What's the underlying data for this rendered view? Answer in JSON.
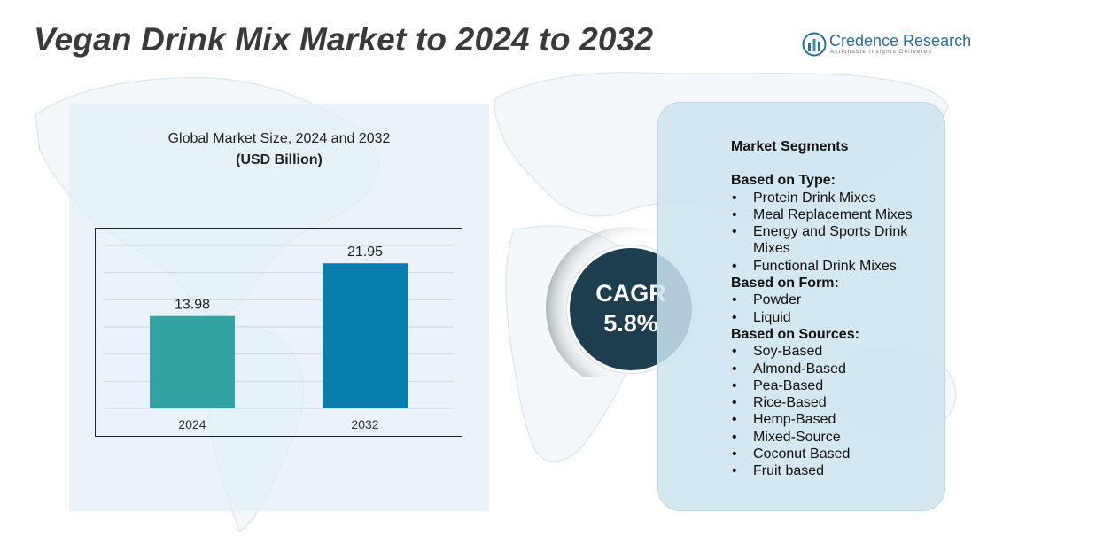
{
  "header": {
    "title": "Vegan Drink Mix Market to 2024 to 2032"
  },
  "logo": {
    "name": "Credence Research",
    "tagline": "Actionable Insights Delivered",
    "icon": "bar-chart-logo-icon"
  },
  "chart_data": {
    "type": "bar",
    "title": "Global Market Size, 2024 and 2032",
    "subtitle": "(USD Billion)",
    "categories": [
      "2024",
      "2032"
    ],
    "values": [
      13.98,
      21.95
    ],
    "data_labels": [
      "13.98",
      "21.95"
    ],
    "ylim": [
      0,
      26
    ],
    "grid": true,
    "bar_colors": [
      "#31a3a3",
      "#0a7ead"
    ]
  },
  "cagr": {
    "label": "CAGR",
    "value": "5.8%"
  },
  "segments": {
    "heading": "Market Segments",
    "groups": [
      {
        "title": "Based on Type:",
        "items": [
          "Protein Drink Mixes",
          "Meal Replacement Mixes",
          "Energy and Sports Drink Mixes",
          "Functional Drink Mixes"
        ]
      },
      {
        "title": "Based on Form:",
        "items": [
          "Powder",
          "Liquid"
        ]
      },
      {
        "title": "Based on Sources:",
        "items": [
          "Soy-Based",
          "Almond-Based",
          "Pea-Based",
          "Rice-Based",
          "Hemp-Based",
          "Mixed-Source",
          "Coconut Based",
          "Fruit based"
        ]
      }
    ]
  },
  "colors": {
    "title": "#3a3a3a",
    "cagr_circle": "#1c3e4f",
    "segment_panel": "#cde4f0",
    "logo": "#2b6f92"
  }
}
